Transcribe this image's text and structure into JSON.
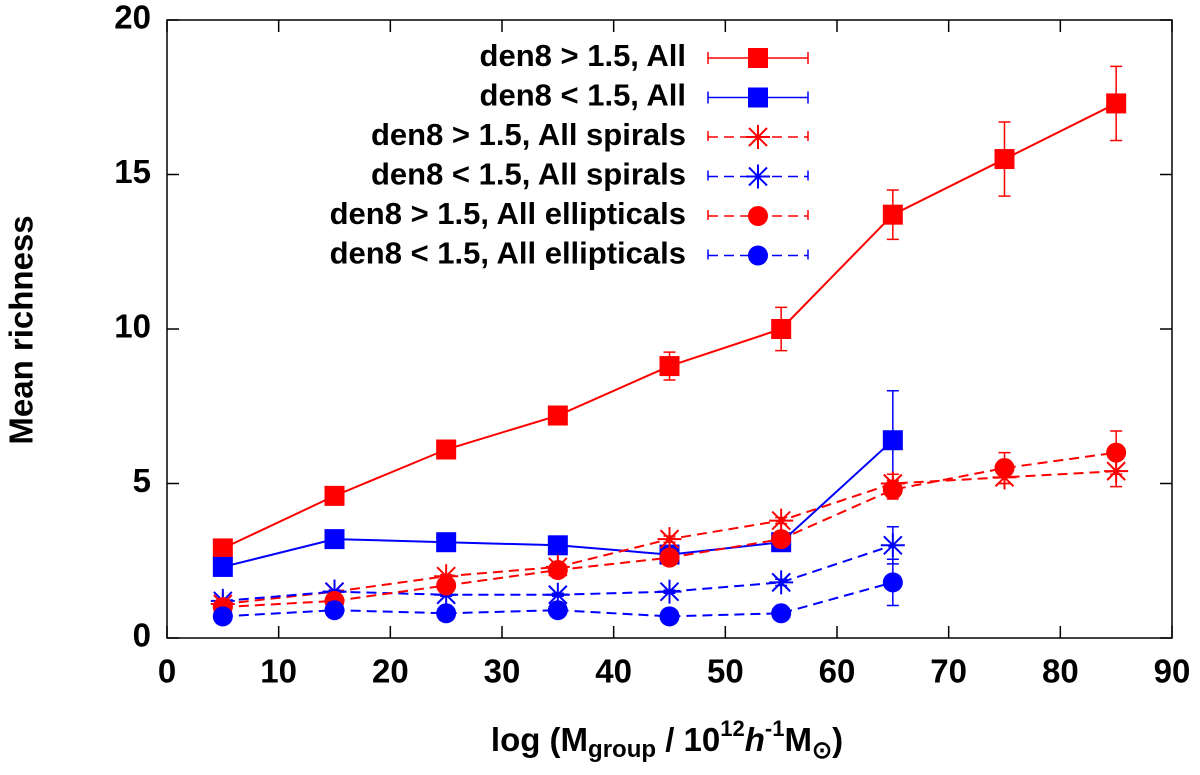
{
  "chart_data": {
    "type": "line",
    "xlabel": [
      "log (M",
      "group",
      " / 10",
      "12",
      "h",
      "-1",
      "M",
      "⊙",
      ")"
    ],
    "ylabel": "Mean richness",
    "x": [
      5,
      15,
      25,
      35,
      45,
      55,
      65,
      75,
      85
    ],
    "xlim": [
      0,
      90
    ],
    "xticks": [
      0,
      10,
      20,
      30,
      40,
      50,
      60,
      70,
      80,
      90
    ],
    "ylim": [
      0,
      20
    ],
    "yticks": [
      0,
      5,
      10,
      15,
      20
    ],
    "legend": "top-right",
    "series": [
      {
        "name": "den8 > 1.5, All",
        "color": "#ff0000",
        "marker": "square",
        "dashed": false,
        "values": [
          2.9,
          4.6,
          6.1,
          7.2,
          8.8,
          10.0,
          13.7,
          15.5,
          17.3
        ],
        "errors": [
          0.1,
          0.1,
          0.1,
          0.1,
          0.45,
          0.7,
          0.8,
          1.2,
          1.2
        ]
      },
      {
        "name": "den8 < 1.5, All",
        "color": "#0000ff",
        "marker": "square",
        "dashed": false,
        "values": [
          2.3,
          3.2,
          3.1,
          3.0,
          2.7,
          3.1,
          6.4,
          null,
          null
        ],
        "errors": [
          0.1,
          0.1,
          0.1,
          0.1,
          0.1,
          0.1,
          1.6,
          null,
          null
        ]
      },
      {
        "name": "den8 > 1.5, All spirals",
        "color": "#ff0000",
        "marker": "asterisk",
        "dashed": true,
        "values": [
          1.1,
          1.5,
          2.0,
          2.3,
          3.2,
          3.8,
          5.0,
          5.2,
          5.4
        ],
        "errors": [
          0.05,
          0.05,
          0.05,
          0.05,
          0.1,
          0.1,
          0.3,
          0.2,
          0.5
        ]
      },
      {
        "name": "den8 < 1.5, All spirals",
        "color": "#0000ff",
        "marker": "asterisk",
        "dashed": true,
        "values": [
          1.2,
          1.5,
          1.4,
          1.4,
          1.5,
          1.8,
          3.0,
          null,
          null
        ],
        "errors": [
          0.05,
          0.05,
          0.05,
          0.05,
          0.05,
          0.1,
          0.6,
          null,
          null
        ]
      },
      {
        "name": "den8 > 1.5, All ellipticals",
        "color": "#ff0000",
        "marker": "circle",
        "dashed": true,
        "values": [
          1.0,
          1.2,
          1.7,
          2.2,
          2.6,
          3.2,
          4.8,
          5.5,
          6.0
        ],
        "errors": [
          0.05,
          0.05,
          0.05,
          0.05,
          0.1,
          0.1,
          0.3,
          0.5,
          0.7
        ]
      },
      {
        "name": "den8 < 1.5, All ellipticals",
        "color": "#0000ff",
        "marker": "circle",
        "dashed": true,
        "values": [
          0.7,
          0.9,
          0.8,
          0.9,
          0.7,
          0.8,
          1.8,
          null,
          null
        ],
        "errors": [
          0.05,
          0.05,
          0.05,
          0.05,
          0.05,
          0.1,
          0.75,
          null,
          null
        ]
      }
    ]
  }
}
